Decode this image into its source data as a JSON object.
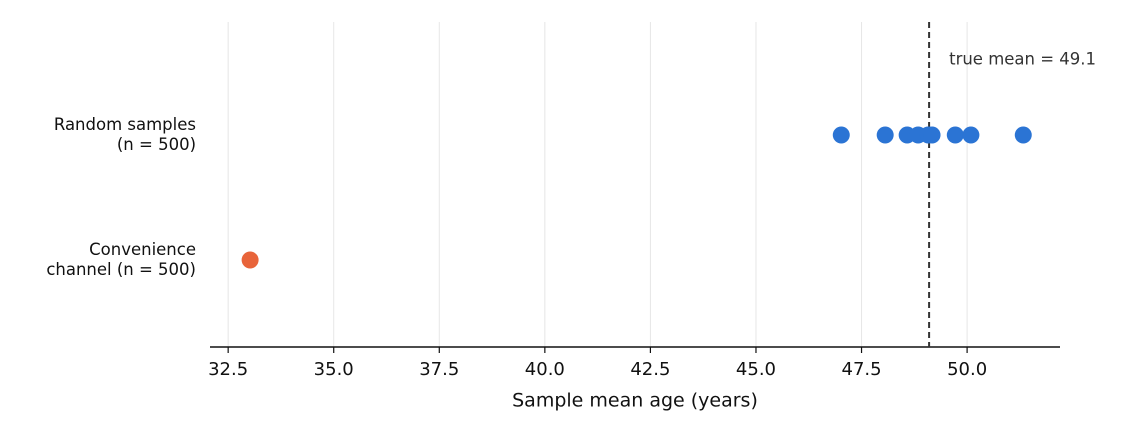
{
  "chart_data": {
    "type": "strip",
    "categories": [
      "Random samples\n(n = 500)",
      "Convenience\nchannel (n = 500)"
    ],
    "values": [
      [
        47.02,
        48.06,
        48.58,
        48.84,
        49.08,
        49.17,
        49.72,
        50.09,
        51.33
      ],
      [
        33.02
      ]
    ],
    "colors": [
      "#2b74d4",
      "#e8643a"
    ],
    "xlabel": "Sample mean age (years)",
    "xlim": [
      32.07,
      52.2
    ],
    "xticks": [
      32.5,
      {
        "value": 35,
        "label": "35.0"
      },
      37.5,
      {
        "value": 40,
        "label": "40.0"
      },
      42.5,
      {
        "value": 45,
        "label": "45.0"
      },
      47.5,
      {
        "value": 50,
        "label": "50.0"
      }
    ],
    "grid": true,
    "reference_line": {
      "x": 49.1,
      "label": "true mean = 49.1"
    }
  }
}
